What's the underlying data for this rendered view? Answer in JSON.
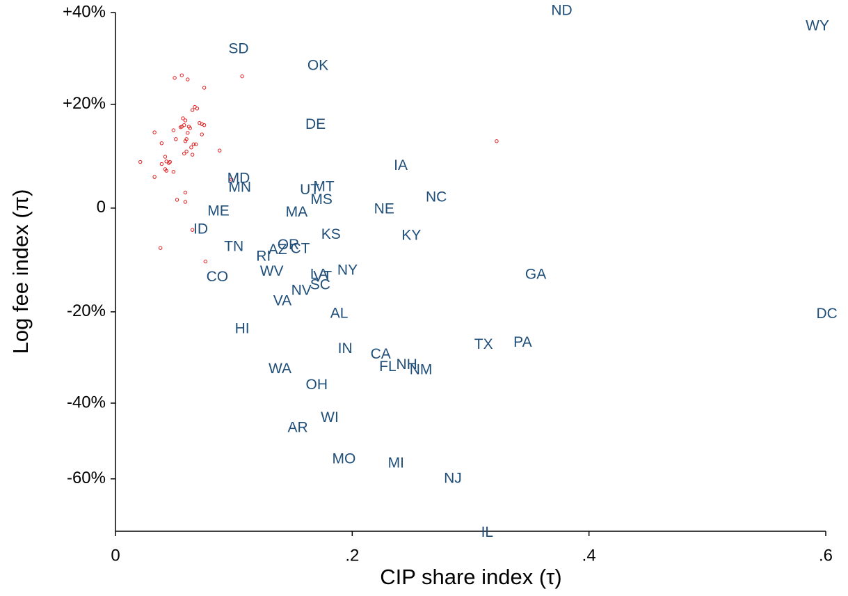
{
  "chart_data": {
    "type": "scatter",
    "x_label": "CIP share index (τ)",
    "y_label": "Log fee index (π)",
    "xlim": [
      0,
      0.6
    ],
    "ylim": [
      -0.623,
      0.377
    ],
    "xticks": [
      0,
      {
        "value": 0.2,
        "label": ".2"
      },
      {
        "value": 0.4,
        "label": ".4"
      },
      {
        "value": 0.6,
        "label": ".6"
      }
    ],
    "yticks": [
      {
        "value": 0.377,
        "label": "+40%"
      },
      {
        "value": 0.2,
        "label": "+20%"
      },
      0,
      {
        "value": -0.2,
        "label": "-20%"
      },
      {
        "value": -0.376,
        "label": "-40%"
      },
      {
        "value": -0.522,
        "label": "-60%"
      }
    ],
    "labeled_points": {
      "color": "#1f4e79",
      "labels": [
        "ND",
        "WY",
        "SD",
        "OK",
        "DE",
        "IA",
        "MD",
        "MN",
        "UT",
        "MT",
        "MS",
        "NC",
        "NE",
        "ME",
        "MA",
        "ID",
        "KS",
        "KY",
        "TN",
        "OR",
        "AZ",
        "CT",
        "RI",
        "GA",
        "WV",
        "NY",
        "LA",
        "VT",
        "SC",
        "NV",
        "CO",
        "VA",
        "DC",
        "AL",
        "HI",
        "IN",
        "TX",
        "PA",
        "CA",
        "FL",
        "NH",
        "NM",
        "WA",
        "OH",
        "WI",
        "AR",
        "MO",
        "MI",
        "NJ",
        "IL"
      ],
      "x": [
        0.377,
        0.593,
        0.104,
        0.171,
        0.169,
        0.241,
        0.104,
        0.105,
        0.164,
        0.176,
        0.174,
        0.271,
        0.227,
        0.087,
        0.153,
        0.072,
        0.182,
        0.25,
        0.1,
        0.146,
        0.137,
        0.156,
        0.125,
        0.355,
        0.132,
        0.196,
        0.172,
        0.175,
        0.173,
        0.157,
        0.086,
        0.141,
        0.601,
        0.189,
        0.107,
        0.194,
        0.311,
        0.344,
        0.224,
        0.23,
        0.246,
        0.258,
        0.139,
        0.17,
        0.181,
        0.154,
        0.193,
        0.237,
        0.285,
        0.314
      ],
      "y": [
        0.38,
        0.35,
        0.306,
        0.274,
        0.16,
        0.081,
        0.056,
        0.039,
        0.034,
        0.04,
        0.015,
        0.02,
        -0.003,
        -0.007,
        -0.009,
        -0.042,
        -0.052,
        -0.054,
        -0.075,
        -0.072,
        -0.081,
        -0.079,
        -0.094,
        -0.129,
        -0.123,
        -0.121,
        -0.129,
        -0.133,
        -0.149,
        -0.16,
        -0.134,
        -0.18,
        -0.205,
        -0.204,
        -0.234,
        -0.272,
        -0.264,
        -0.26,
        -0.283,
        -0.307,
        -0.303,
        -0.313,
        -0.311,
        -0.342,
        -0.405,
        -0.424,
        -0.485,
        -0.493,
        -0.522,
        -0.626
      ]
    },
    "points": {
      "color": "#e41a1c",
      "x": [
        0.05,
        0.056,
        0.061,
        0.107,
        0.075,
        0.033,
        0.049,
        0.065,
        0.067,
        0.069,
        0.071,
        0.073,
        0.075,
        0.057,
        0.059,
        0.056,
        0.055,
        0.058,
        0.062,
        0.063,
        0.061,
        0.073,
        0.051,
        0.06,
        0.059,
        0.039,
        0.066,
        0.068,
        0.064,
        0.088,
        0.058,
        0.06,
        0.065,
        0.042,
        0.021,
        0.043,
        0.045,
        0.046,
        0.039,
        0.042,
        0.043,
        0.049,
        0.033,
        0.059,
        0.098,
        0.052,
        0.059,
        0.065,
        0.038,
        0.076,
        0.322
      ],
      "y": [
        0.251,
        0.256,
        0.248,
        0.254,
        0.232,
        0.146,
        0.15,
        0.189,
        0.195,
        0.192,
        0.164,
        0.162,
        0.16,
        0.173,
        0.169,
        0.157,
        0.156,
        0.16,
        0.157,
        0.154,
        0.145,
        0.142,
        0.133,
        0.133,
        0.129,
        0.125,
        0.123,
        0.123,
        0.117,
        0.111,
        0.105,
        0.109,
        0.103,
        0.099,
        0.089,
        0.09,
        0.087,
        0.089,
        0.085,
        0.075,
        0.072,
        0.07,
        0.06,
        0.03,
        0.055,
        0.016,
        0.012,
        -0.042,
        -0.077,
        -0.103,
        0.129
      ]
    }
  }
}
